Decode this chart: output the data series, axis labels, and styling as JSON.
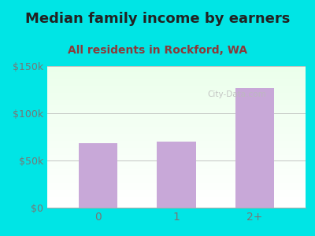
{
  "title": "Median family income by earners",
  "subtitle": "All residents in Rockford, WA",
  "categories": [
    "0",
    "1",
    "2+"
  ],
  "values": [
    68000,
    70000,
    127000
  ],
  "bar_color": "#c8a8d8",
  "background_color": "#00e5e5",
  "title_color": "#222222",
  "subtitle_color": "#8b3a3a",
  "tick_color": "#777777",
  "ylim": [
    0,
    150000
  ],
  "yticks": [
    0,
    50000,
    100000,
    150000
  ],
  "ytick_labels": [
    "$0",
    "$50k",
    "$100k",
    "$150k"
  ],
  "title_fontsize": 13,
  "subtitle_fontsize": 10,
  "watermark": "City-Data.com"
}
